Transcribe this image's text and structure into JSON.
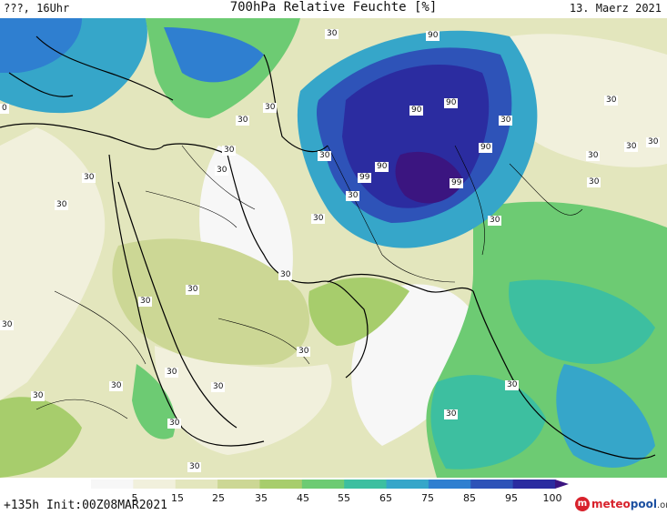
{
  "header": {
    "left": "???, 16Uhr",
    "title": "700hPa Relative Feuchte [%]",
    "right": "13. Maerz 2021"
  },
  "footer": {
    "run_info": "+135h Init:00Z08MAR2021",
    "logo_main": "meteo",
    "logo_accent": "pool",
    "logo_suffix": ".org"
  },
  "legend": {
    "ticks": [
      "5",
      "15",
      "25",
      "35",
      "45",
      "55",
      "65",
      "75",
      "85",
      "95",
      "100"
    ],
    "colors": [
      "#f7f7f7",
      "#f1f0dc",
      "#e3e6bd",
      "#ccd795",
      "#a7cd6c",
      "#6dcb73",
      "#3dbfa0",
      "#36a6c9",
      "#2f7fd0",
      "#2e53b8",
      "#2b2ca0",
      "#3b1580"
    ]
  },
  "contour_labels": [
    "90",
    "90",
    "90",
    "90",
    "90",
    "99",
    "99",
    "30",
    "30",
    "30",
    "30",
    "30",
    "30",
    "30",
    "30",
    "30",
    "30",
    "30",
    "30",
    "30",
    "30",
    "30",
    "30",
    "30",
    "30",
    "30",
    "30",
    "30",
    "30",
    "30",
    "30",
    "30",
    "30",
    "30",
    "30",
    "30",
    "30",
    "0"
  ]
}
